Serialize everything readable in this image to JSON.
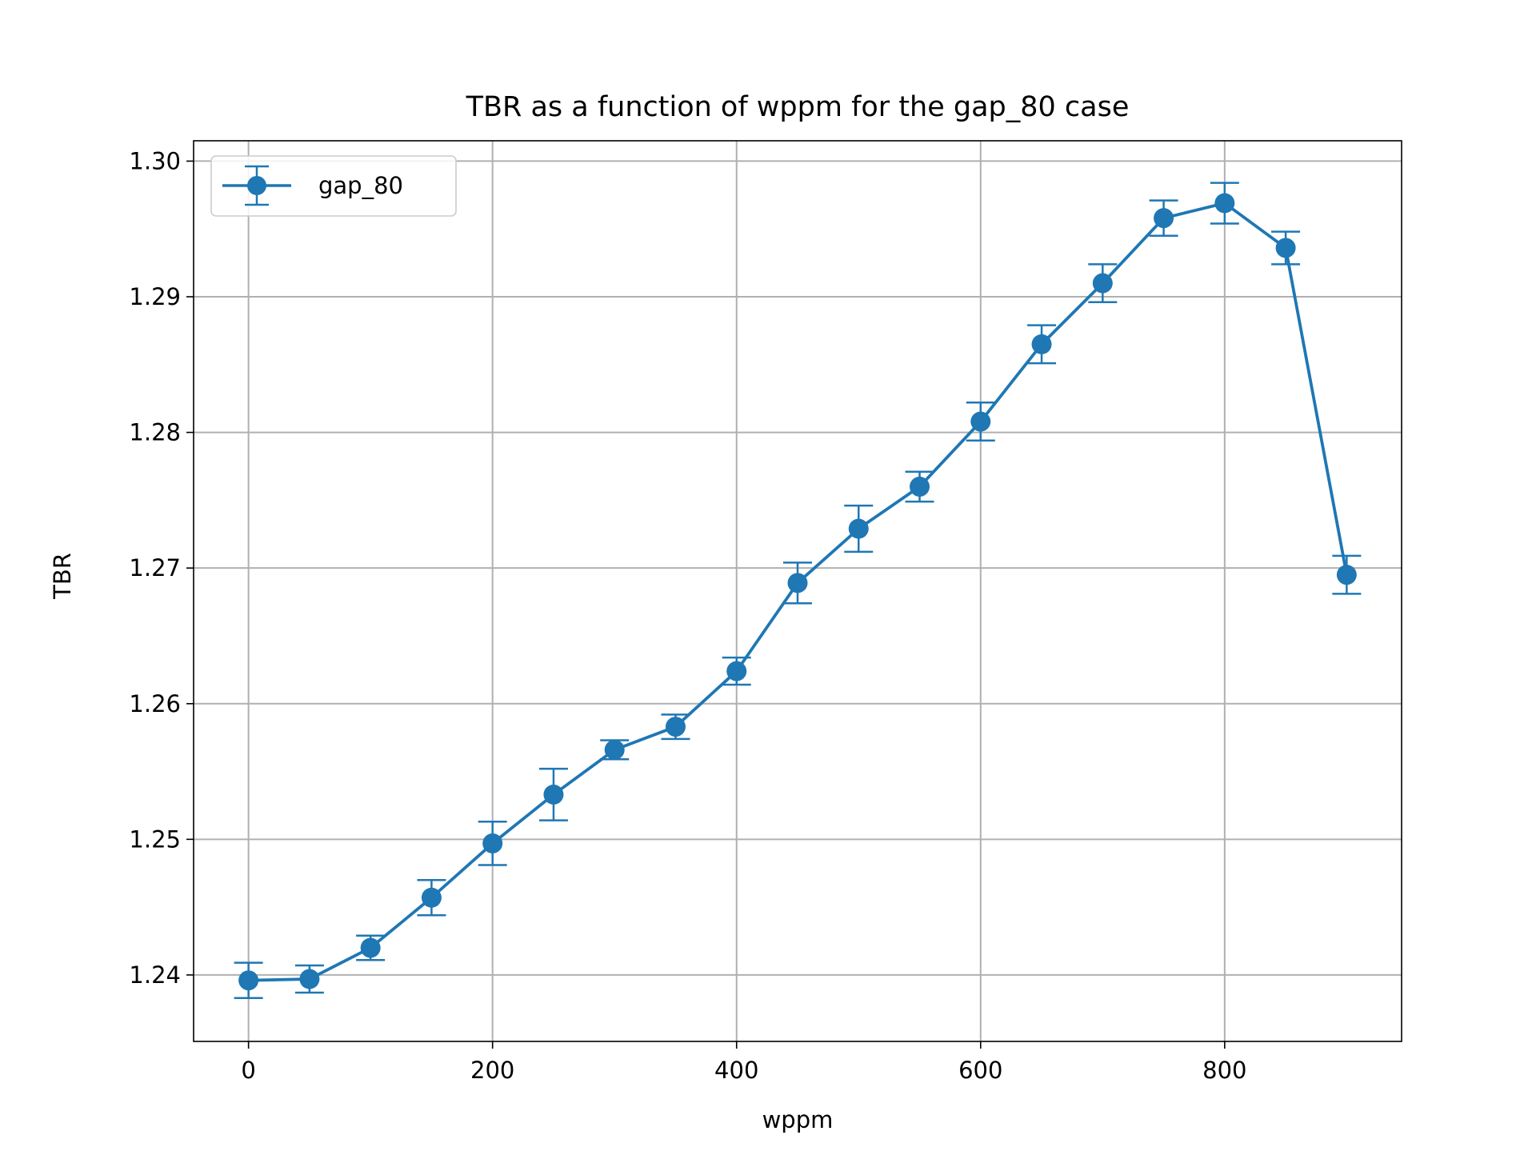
{
  "chart_data": {
    "type": "line",
    "title": "TBR as a function of wppm for the gap_80 case",
    "xlabel": "wppm",
    "ylabel": "TBR",
    "xlim": [
      -45,
      945
    ],
    "ylim": [
      1.2351,
      1.3015
    ],
    "x_ticks": [
      0,
      200,
      400,
      600,
      800
    ],
    "y_ticks": [
      1.24,
      1.25,
      1.26,
      1.27,
      1.28,
      1.29,
      1.3
    ],
    "y_tick_labels": [
      "1.24",
      "1.25",
      "1.26",
      "1.27",
      "1.28",
      "1.29",
      "1.30"
    ],
    "grid": true,
    "legend_position": "upper-left",
    "color": "#1f77b4",
    "series": [
      {
        "name": "gap_80",
        "x": [
          0,
          50,
          100,
          150,
          200,
          250,
          300,
          350,
          400,
          450,
          500,
          550,
          600,
          650,
          700,
          750,
          800,
          850,
          900
        ],
        "y": [
          1.2396,
          1.2397,
          1.242,
          1.2457,
          1.2497,
          1.2533,
          1.2566,
          1.2583,
          1.2624,
          1.2689,
          1.2729,
          1.276,
          1.2808,
          1.2865,
          1.291,
          1.2958,
          1.2969,
          1.2936,
          1.2695
        ],
        "err": [
          0.0013,
          0.001,
          0.0009,
          0.0013,
          0.0016,
          0.0019,
          0.0007,
          0.0009,
          0.001,
          0.0015,
          0.0017,
          0.0011,
          0.0014,
          0.0014,
          0.0014,
          0.0013,
          0.0015,
          0.0012,
          0.0014
        ]
      }
    ]
  }
}
